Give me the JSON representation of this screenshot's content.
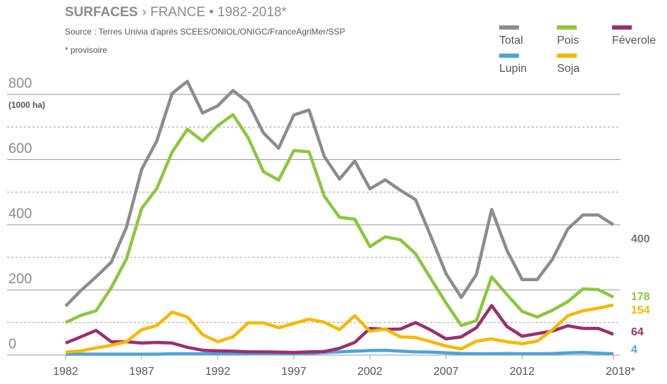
{
  "chart_data": {
    "type": "line",
    "title": "SURFACES",
    "title_suffix": "› FRANCE • 1982-2018*",
    "source": "Source : Terres Univia d'après SCEES/ONIOL/ONIGC/FranceAgriMer/SSP",
    "note": "* provisoire",
    "y_unit": "(1000 ha)",
    "x": [
      1982,
      1983,
      1984,
      1985,
      1986,
      1987,
      1988,
      1989,
      1990,
      1991,
      1992,
      1993,
      1994,
      1995,
      1996,
      1997,
      1998,
      1999,
      2000,
      2001,
      2002,
      2003,
      2004,
      2005,
      2006,
      2007,
      2008,
      2009,
      2010,
      2011,
      2012,
      2013,
      2014,
      2015,
      2016,
      2017,
      2018
    ],
    "xlim": [
      1982,
      2018
    ],
    "xticks": [
      1982,
      1987,
      1992,
      1997,
      2002,
      2007,
      2012,
      {
        "value": 2018,
        "label": "2018*"
      }
    ],
    "ylim": [
      0,
      800
    ],
    "yticks": [
      0,
      200,
      400,
      600,
      800
    ],
    "minor_yticks": [
      100,
      300,
      500,
      700
    ],
    "grid": true,
    "legend": "top-right",
    "series": [
      {
        "name": "Total",
        "color": "#8c8c8c",
        "values": [
          150,
          198,
          240,
          285,
          392,
          570,
          658,
          803,
          840,
          743,
          765,
          812,
          775,
          682,
          635,
          737,
          752,
          610,
          540,
          596,
          510,
          538,
          506,
          477,
          365,
          250,
          177,
          248,
          447,
          322,
          232,
          232,
          295,
          387,
          430,
          430,
          400
        ]
      },
      {
        "name": "Pois",
        "color": "#8dc63f",
        "values": [
          100,
          122,
          136,
          207,
          295,
          450,
          512,
          623,
          693,
          657,
          704,
          738,
          667,
          563,
          537,
          628,
          624,
          488,
          423,
          417,
          333,
          363,
          354,
          311,
          235,
          160,
          91,
          106,
          240,
          186,
          134,
          117,
          138,
          164,
          203,
          201,
          178
        ]
      },
      {
        "name": "Féverole",
        "color": "#9b2f6e",
        "values": [
          37,
          56,
          76,
          41,
          41,
          37,
          39,
          37,
          24,
          15,
          13,
          12,
          10,
          10,
          9,
          8,
          10,
          11,
          21,
          39,
          82,
          79,
          80,
          100,
          77,
          50,
          56,
          84,
          152,
          88,
          58,
          66,
          74,
          90,
          82,
          82,
          64
        ]
      },
      {
        "name": "Lupin",
        "color": "#4ea3d8",
        "values": [
          3,
          3,
          3,
          3,
          3,
          3,
          3,
          4,
          4,
          4,
          4,
          4,
          4,
          5,
          5,
          5,
          5,
          8,
          10,
          12,
          14,
          15,
          12,
          10,
          9,
          7,
          5,
          4,
          4,
          5,
          4,
          4,
          5,
          7,
          8,
          6,
          4
        ]
      },
      {
        "name": "Soja",
        "color": "#f5b800",
        "values": [
          9,
          13,
          22,
          30,
          41,
          78,
          91,
          132,
          117,
          63,
          41,
          56,
          99,
          99,
          84,
          97,
          110,
          101,
          78,
          121,
          73,
          80,
          56,
          54,
          41,
          28,
          19,
          43,
          50,
          41,
          35,
          43,
          78,
          121,
          136,
          144,
          154
        ]
      }
    ]
  }
}
